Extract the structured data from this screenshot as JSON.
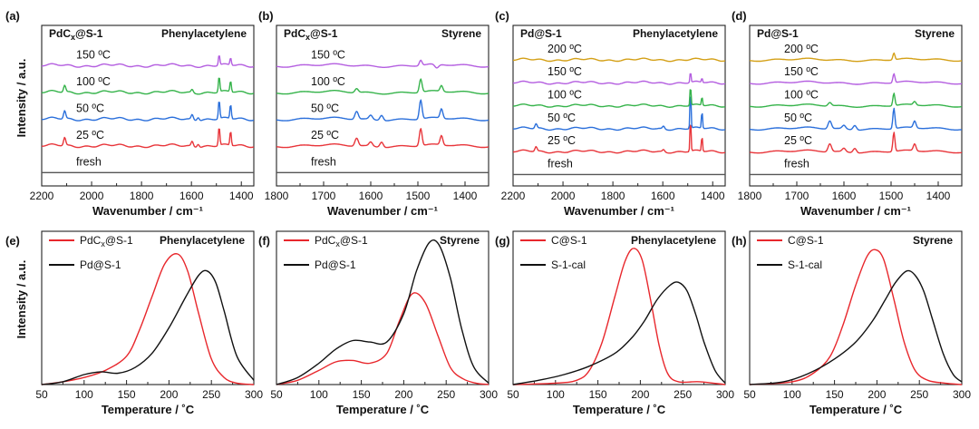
{
  "figure": {
    "ylabel_top": "Intensity / a.u.",
    "ylabel_bottom": "Intensity / a.u."
  },
  "chart_data": [
    {
      "panel": "(a)",
      "type": "line",
      "title_left": "PdCx@S-1",
      "title_right": "Phenylacetylene",
      "xlabel": "Wavenumber / cm⁻¹",
      "xlim": [
        2200,
        1350
      ],
      "xticks": [
        2200,
        2000,
        1800,
        1600,
        1400
      ],
      "ylim": [
        -0.5,
        5.5
      ],
      "series": [
        {
          "label": "fresh",
          "color": "#555555",
          "offset": 0,
          "peaks": []
        },
        {
          "label": "25 ºC",
          "color": "#e8353a",
          "offset": 1,
          "peaks": [
            [
              2108,
              0.3,
              6
            ],
            [
              1597,
              0.18,
              6
            ],
            [
              1573,
              0.12,
              6
            ],
            [
              1489,
              0.72,
              4
            ],
            [
              1443,
              0.55,
              4
            ]
          ]
        },
        {
          "label": "50 ºC",
          "color": "#2a6fdb",
          "offset": 2,
          "peaks": [
            [
              2108,
              0.3,
              6
            ],
            [
              1597,
              0.18,
              6
            ],
            [
              1573,
              0.12,
              6
            ],
            [
              1489,
              0.72,
              4
            ],
            [
              1443,
              0.55,
              4
            ]
          ]
        },
        {
          "label": "100 ºC",
          "color": "#35b34a",
          "offset": 3,
          "peaks": [
            [
              2108,
              0.25,
              6
            ],
            [
              1597,
              0.12,
              6
            ],
            [
              1489,
              0.6,
              4
            ],
            [
              1443,
              0.42,
              4
            ]
          ]
        },
        {
          "label": "150 ºC",
          "color": "#b45ee0",
          "offset": 4,
          "peaks": [
            [
              1489,
              0.4,
              4
            ],
            [
              1443,
              0.28,
              4
            ]
          ]
        }
      ]
    },
    {
      "panel": "(b)",
      "type": "line",
      "title_left": "PdCx@S-1",
      "title_right": "Styrene",
      "xlabel": "Wavenumber / cm⁻¹",
      "xlim": [
        1800,
        1350
      ],
      "xticks": [
        1800,
        1700,
        1600,
        1500,
        1400
      ],
      "ylim": [
        -0.5,
        5.5
      ],
      "series": [
        {
          "label": "fresh",
          "color": "#555555",
          "offset": 0,
          "peaks": []
        },
        {
          "label": "25 ºC",
          "color": "#e8353a",
          "offset": 1,
          "peaks": [
            [
              1630,
              0.3,
              5
            ],
            [
              1600,
              0.15,
              5
            ],
            [
              1577,
              0.2,
              5
            ],
            [
              1494,
              0.65,
              4
            ],
            [
              1450,
              0.35,
              4
            ]
          ]
        },
        {
          "label": "50 ºC",
          "color": "#2a6fdb",
          "offset": 2,
          "peaks": [
            [
              1630,
              0.3,
              5
            ],
            [
              1600,
              0.15,
              5
            ],
            [
              1577,
              0.2,
              5
            ],
            [
              1494,
              0.72,
              4
            ],
            [
              1450,
              0.35,
              4
            ]
          ]
        },
        {
          "label": "100 ºC",
          "color": "#35b34a",
          "offset": 3,
          "peaks": [
            [
              1630,
              0.15,
              5
            ],
            [
              1494,
              0.5,
              4
            ],
            [
              1450,
              0.22,
              4
            ]
          ]
        },
        {
          "label": "150 ºC",
          "color": "#b45ee0",
          "offset": 4,
          "peaks": [
            [
              1494,
              0.2,
              4
            ],
            [
              1460,
              -0.15,
              6
            ]
          ]
        }
      ]
    },
    {
      "panel": "(c)",
      "type": "line",
      "title_left": "Pd@S-1",
      "title_right": "Phenylacetylene",
      "xlabel": "Wavenumber / cm⁻¹",
      "xlim": [
        2200,
        1350
      ],
      "xticks": [
        2200,
        2000,
        1800,
        1600,
        1400
      ],
      "ylim": [
        -0.5,
        6.5
      ],
      "series": [
        {
          "label": "fresh",
          "color": "#555555",
          "offset": 0,
          "peaks": []
        },
        {
          "label": "25 ºC",
          "color": "#e8353a",
          "offset": 1,
          "peaks": [
            [
              2108,
              0.2,
              6
            ],
            [
              1597,
              0.1,
              6
            ],
            [
              1489,
              1.5,
              3
            ],
            [
              1443,
              0.7,
              3
            ]
          ]
        },
        {
          "label": "50 ºC",
          "color": "#2a6fdb",
          "offset": 2,
          "peaks": [
            [
              2108,
              0.2,
              6
            ],
            [
              1597,
              0.12,
              6
            ],
            [
              1489,
              1.8,
              3
            ],
            [
              1443,
              0.8,
              3
            ]
          ]
        },
        {
          "label": "100 ºC",
          "color": "#35b34a",
          "offset": 3,
          "peaks": [
            [
              1489,
              0.9,
              3
            ],
            [
              1443,
              0.4,
              3
            ]
          ]
        },
        {
          "label": "150 ºC",
          "color": "#b45ee0",
          "offset": 4,
          "peaks": [
            [
              1489,
              0.5,
              3
            ],
            [
              1443,
              0.2,
              3
            ]
          ]
        },
        {
          "label": "200 ºC",
          "color": "#d4a017",
          "offset": 5,
          "peaks": []
        }
      ]
    },
    {
      "panel": "(d)",
      "type": "line",
      "title_left": "Pd@S-1",
      "title_right": "Styrene",
      "xlabel": "Wavenumber / cm⁻¹",
      "xlim": [
        1800,
        1350
      ],
      "xticks": [
        1800,
        1700,
        1600,
        1500,
        1400
      ],
      "ylim": [
        -0.5,
        6.5
      ],
      "series": [
        {
          "label": "fresh",
          "color": "#555555",
          "offset": 0,
          "peaks": []
        },
        {
          "label": "25 ºC",
          "color": "#e8353a",
          "offset": 1,
          "peaks": [
            [
              1630,
              0.35,
              5
            ],
            [
              1600,
              0.15,
              5
            ],
            [
              1577,
              0.2,
              5
            ],
            [
              1494,
              0.85,
              3
            ],
            [
              1450,
              0.3,
              4
            ]
          ]
        },
        {
          "label": "50 ºC",
          "color": "#2a6fdb",
          "offset": 2,
          "peaks": [
            [
              1630,
              0.35,
              5
            ],
            [
              1600,
              0.15,
              5
            ],
            [
              1577,
              0.2,
              5
            ],
            [
              1494,
              0.9,
              3
            ],
            [
              1450,
              0.3,
              4
            ]
          ]
        },
        {
          "label": "100 ºC",
          "color": "#35b34a",
          "offset": 3,
          "peaks": [
            [
              1630,
              0.15,
              5
            ],
            [
              1494,
              0.55,
              3
            ],
            [
              1450,
              0.15,
              4
            ]
          ]
        },
        {
          "label": "150 ºC",
          "color": "#b45ee0",
          "offset": 4,
          "peaks": [
            [
              1494,
              0.4,
              3
            ]
          ]
        },
        {
          "label": "200 ºC",
          "color": "#d4a017",
          "offset": 5,
          "peaks": [
            [
              1494,
              0.3,
              3
            ]
          ]
        }
      ]
    },
    {
      "panel": "(e)",
      "type": "line",
      "title_right": "Phenylacetylene",
      "xlabel": "Temperature / ˚C",
      "xlim": [
        50,
        300
      ],
      "xticks": [
        50,
        100,
        150,
        200,
        250,
        300
      ],
      "ylim": [
        0,
        1.08
      ],
      "series": [
        {
          "label": "PdCx@S-1",
          "color": "#e8272c",
          "x": [
            50,
            75,
            100,
            125,
            150,
            165,
            180,
            195,
            210,
            222,
            235,
            250,
            265,
            280,
            300
          ],
          "y": [
            0.0,
            0.02,
            0.05,
            0.1,
            0.2,
            0.38,
            0.62,
            0.85,
            0.92,
            0.8,
            0.5,
            0.18,
            0.05,
            0.01,
            0.0
          ]
        },
        {
          "label": "Pd@S-1",
          "color": "#111111",
          "x": [
            50,
            75,
            100,
            120,
            140,
            160,
            180,
            200,
            220,
            235,
            245,
            255,
            265,
            280,
            300
          ],
          "y": [
            0.0,
            0.02,
            0.07,
            0.09,
            0.08,
            0.12,
            0.22,
            0.4,
            0.62,
            0.77,
            0.8,
            0.72,
            0.52,
            0.2,
            0.03
          ]
        }
      ]
    },
    {
      "panel": "(f)",
      "type": "line",
      "title_right": "Styrene",
      "xlabel": "Temperature / ˚C",
      "xlim": [
        50,
        300
      ],
      "xticks": [
        50,
        100,
        150,
        200,
        250,
        300
      ],
      "ylim": [
        0,
        1.08
      ],
      "series": [
        {
          "label": "PdCx@S-1",
          "color": "#e8272c",
          "x": [
            50,
            75,
            100,
            120,
            140,
            160,
            180,
            195,
            210,
            225,
            240,
            255,
            270,
            285,
            300
          ],
          "y": [
            0.0,
            0.03,
            0.1,
            0.16,
            0.17,
            0.15,
            0.22,
            0.45,
            0.64,
            0.58,
            0.35,
            0.12,
            0.04,
            0.01,
            0.0
          ]
        },
        {
          "label": "Pd@S-1",
          "color": "#111111",
          "x": [
            50,
            75,
            100,
            120,
            140,
            160,
            180,
            200,
            215,
            230,
            242,
            255,
            268,
            282,
            300
          ],
          "y": [
            0.0,
            0.05,
            0.15,
            0.25,
            0.31,
            0.3,
            0.3,
            0.5,
            0.8,
            1.0,
            0.98,
            0.75,
            0.4,
            0.13,
            0.01
          ]
        }
      ]
    },
    {
      "panel": "(g)",
      "type": "line",
      "title_right": "Phenylacetylene",
      "xlabel": "Temperature / ˚C",
      "xlim": [
        50,
        300
      ],
      "xticks": [
        50,
        100,
        150,
        200,
        250,
        300
      ],
      "ylim": [
        0,
        1.08
      ],
      "series": [
        {
          "label": "C@S-1",
          "color": "#e8272c",
          "x": [
            50,
            100,
            125,
            140,
            155,
            170,
            182,
            192,
            202,
            212,
            222,
            232,
            245,
            270,
            300
          ],
          "y": [
            0.0,
            0.01,
            0.03,
            0.1,
            0.3,
            0.62,
            0.87,
            0.96,
            0.88,
            0.6,
            0.28,
            0.08,
            0.02,
            0.02,
            0.0
          ]
        },
        {
          "label": "S-1-cal",
          "color": "#111111",
          "x": [
            50,
            80,
            110,
            140,
            170,
            190,
            205,
            220,
            235,
            245,
            255,
            265,
            275,
            288,
            300
          ],
          "y": [
            0.0,
            0.03,
            0.07,
            0.13,
            0.22,
            0.33,
            0.45,
            0.6,
            0.7,
            0.72,
            0.66,
            0.5,
            0.3,
            0.1,
            0.01
          ]
        }
      ]
    },
    {
      "panel": "(h)",
      "type": "line",
      "title_right": "Styrene",
      "xlabel": "Temperature / ˚C",
      "xlim": [
        50,
        300
      ],
      "xticks": [
        50,
        100,
        150,
        200,
        250,
        300
      ],
      "ylim": [
        0,
        1.08
      ],
      "series": [
        {
          "label": "C@S-1",
          "color": "#e8272c",
          "x": [
            50,
            100,
            125,
            145,
            160,
            175,
            188,
            198,
            208,
            220,
            232,
            245,
            260,
            280,
            300
          ],
          "y": [
            0.0,
            0.02,
            0.08,
            0.2,
            0.42,
            0.7,
            0.9,
            0.95,
            0.88,
            0.6,
            0.3,
            0.1,
            0.03,
            0.01,
            0.0
          ]
        },
        {
          "label": "S-1-cal",
          "color": "#111111",
          "x": [
            50,
            90,
            120,
            150,
            175,
            195,
            210,
            222,
            235,
            245,
            255,
            265,
            278,
            290,
            300
          ],
          "y": [
            0.0,
            0.02,
            0.08,
            0.18,
            0.3,
            0.45,
            0.6,
            0.72,
            0.8,
            0.77,
            0.66,
            0.47,
            0.22,
            0.07,
            0.02
          ]
        }
      ]
    }
  ]
}
